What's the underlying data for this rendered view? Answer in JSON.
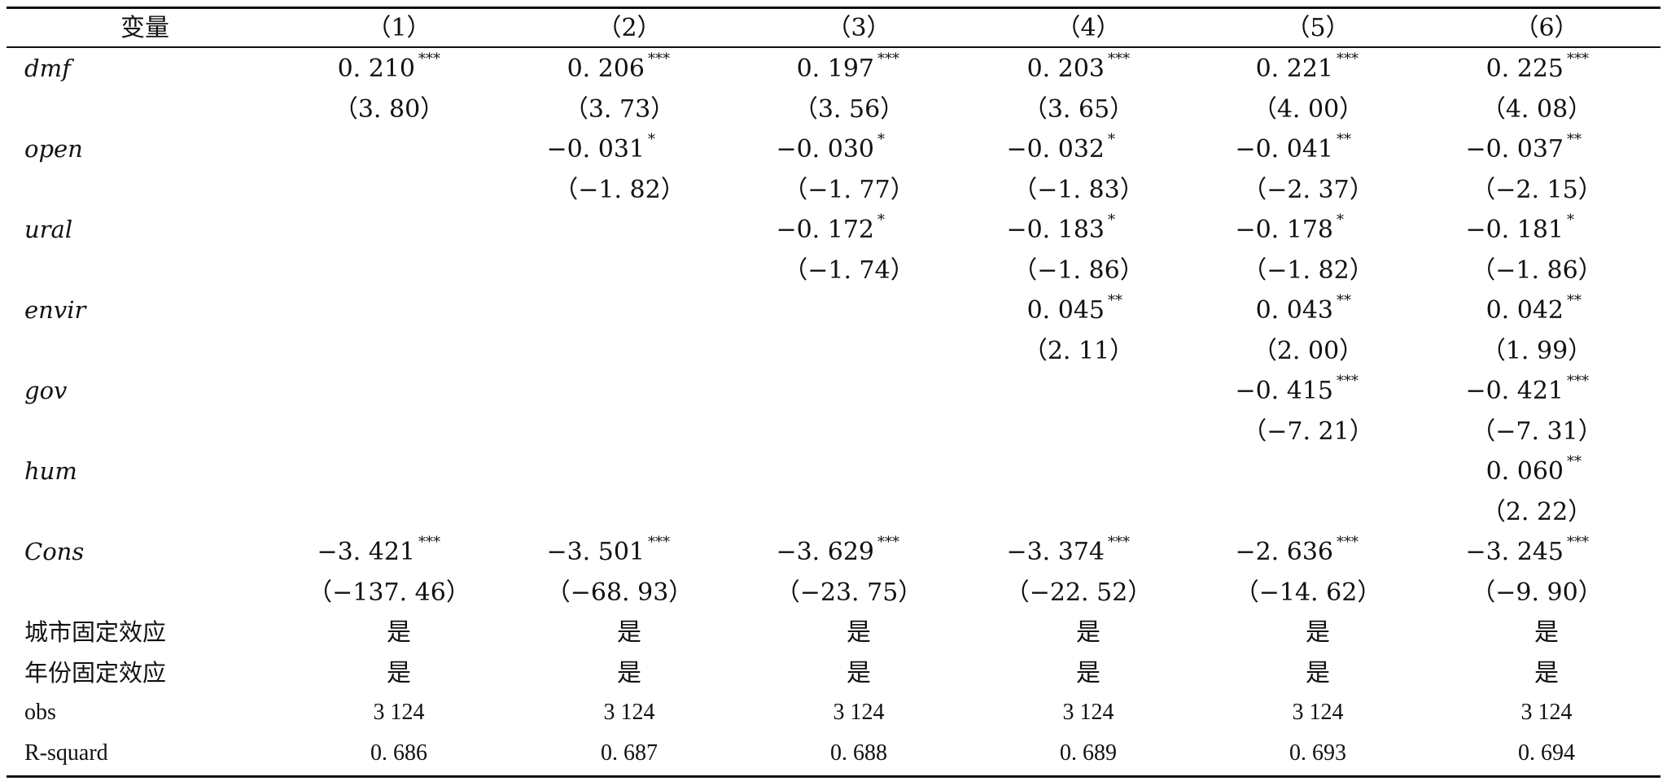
{
  "header": {
    "variable_label": "变量",
    "columns": [
      "（1）",
      "（2）",
      "（3）",
      "（4）",
      "（5）",
      "（6）"
    ]
  },
  "rows": [
    {
      "label": "dmf",
      "italic": true,
      "coef": [
        "0. 210",
        "0. 206",
        "0. 197",
        "0. 203",
        "0. 221",
        "0. 225"
      ],
      "stars": [
        "***",
        "***",
        "***",
        "***",
        "***",
        "***"
      ],
      "tstat": [
        "（3. 80）",
        "（3. 73）",
        "（3. 56）",
        "（3. 65）",
        "（4. 00）",
        "（4. 08）"
      ]
    },
    {
      "label": "open",
      "italic": true,
      "coef": [
        "",
        "−0. 031",
        "−0. 030",
        "−0. 032",
        "−0. 041",
        "−0. 037"
      ],
      "stars": [
        "",
        "*",
        "*",
        "*",
        "**",
        "**"
      ],
      "tstat": [
        "",
        "（−1. 82）",
        "（−1. 77）",
        "（−1. 83）",
        "（−2. 37）",
        "（−2. 15）"
      ]
    },
    {
      "label": "ural",
      "italic": true,
      "coef": [
        "",
        "",
        "−0. 172",
        "−0. 183",
        "−0. 178",
        "−0. 181"
      ],
      "stars": [
        "",
        "",
        "*",
        "*",
        "*",
        "*"
      ],
      "tstat": [
        "",
        "",
        "（−1. 74）",
        "（−1. 86）",
        "（−1. 82）",
        "（−1. 86）"
      ]
    },
    {
      "label": "envir",
      "italic": true,
      "coef": [
        "",
        "",
        "",
        "0. 045",
        "0. 043",
        "0. 042"
      ],
      "stars": [
        "",
        "",
        "",
        "**",
        "**",
        "**"
      ],
      "tstat": [
        "",
        "",
        "",
        "（2. 11）",
        "（2. 00）",
        "（1. 99）"
      ]
    },
    {
      "label": "gov",
      "italic": true,
      "coef": [
        "",
        "",
        "",
        "",
        "−0. 415",
        "−0. 421"
      ],
      "stars": [
        "",
        "",
        "",
        "",
        "***",
        "***"
      ],
      "tstat": [
        "",
        "",
        "",
        "",
        "（−7. 21）",
        "（−7. 31）"
      ]
    },
    {
      "label": "hum",
      "italic": true,
      "coef": [
        "",
        "",
        "",
        "",
        "",
        "0. 060"
      ],
      "stars": [
        "",
        "",
        "",
        "",
        "",
        "**"
      ],
      "tstat": [
        "",
        "",
        "",
        "",
        "",
        "（2. 22）"
      ]
    },
    {
      "label": "Cons",
      "italic": true,
      "coef": [
        "−3. 421",
        "−3. 501",
        "−3. 629",
        "−3. 374",
        "−2. 636",
        "−3. 245"
      ],
      "stars": [
        "***",
        "***",
        "***",
        "***",
        "***",
        "***"
      ],
      "tstat": [
        "（−137. 46）",
        "（−68. 93）",
        "（−23. 75）",
        "（−22. 52）",
        "（−14. 62）",
        "（−9. 90）"
      ]
    }
  ],
  "footer_rows": [
    {
      "label": "城市固定效应",
      "values": [
        "是",
        "是",
        "是",
        "是",
        "是",
        "是"
      ]
    },
    {
      "label": "年份固定效应",
      "values": [
        "是",
        "是",
        "是",
        "是",
        "是",
        "是"
      ]
    },
    {
      "label": "obs",
      "values": [
        "3 124",
        "3 124",
        "3 124",
        "3 124",
        "3 124",
        "3 124"
      ]
    },
    {
      "label": "R-squard",
      "values": [
        "0. 686",
        "0. 687",
        "0. 688",
        "0. 689",
        "0. 693",
        "0. 694"
      ]
    }
  ]
}
